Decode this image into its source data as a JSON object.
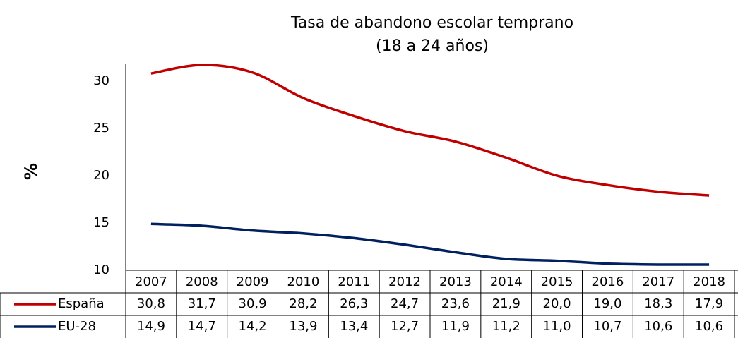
{
  "chart_data": {
    "type": "line",
    "title": "Tasa de abandono escolar temprano",
    "subtitle": "(18 a 24 años)",
    "y_label": "%",
    "categories": [
      "2007",
      "2008",
      "2009",
      "2010",
      "2011",
      "2012",
      "2013",
      "2014",
      "2015",
      "2016",
      "2017",
      "2018"
    ],
    "series": [
      {
        "name": "España",
        "color": "#c00000",
        "values": [
          30.8,
          31.7,
          30.9,
          28.2,
          26.3,
          24.7,
          23.6,
          21.9,
          20.0,
          19.0,
          18.3,
          17.9
        ],
        "value_labels": [
          "30,8",
          "31,7",
          "30,9",
          "28,2",
          "26,3",
          "24,7",
          "23,6",
          "21,9",
          "20,0",
          "19,0",
          "18,3",
          "17,9"
        ]
      },
      {
        "name": "EU-28",
        "color": "#002060",
        "values": [
          14.9,
          14.7,
          14.2,
          13.9,
          13.4,
          12.7,
          11.9,
          11.2,
          11.0,
          10.7,
          10.6,
          10.6
        ],
        "value_labels": [
          "14,9",
          "14,7",
          "14,2",
          "13,9",
          "13,4",
          "12,7",
          "11,9",
          "11,2",
          "11,0",
          "10,7",
          "10,6",
          "10,6"
        ]
      }
    ],
    "ylim": [
      10,
      32
    ],
    "yticks": [
      10,
      15,
      20,
      25,
      30
    ],
    "grid": false
  }
}
